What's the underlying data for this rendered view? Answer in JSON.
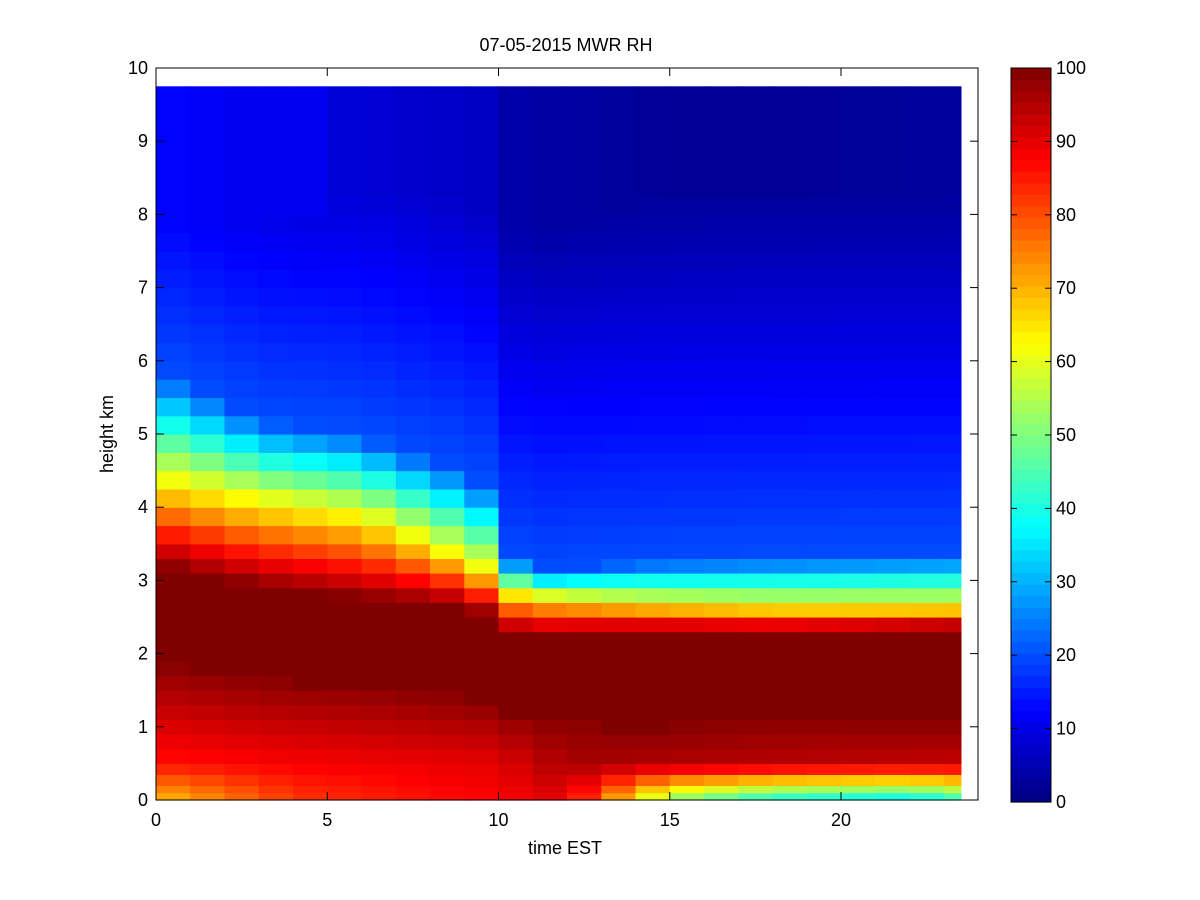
{
  "chart_data": {
    "type": "heatmap",
    "title": "07-05-2015 MWR RH",
    "xlabel": "time EST",
    "ylabel": "height km",
    "xlim": [
      0,
      24
    ],
    "ylim": [
      0,
      10
    ],
    "x_ticks": [
      0,
      5,
      10,
      15,
      20
    ],
    "y_ticks": [
      0,
      1,
      2,
      3,
      4,
      5,
      6,
      7,
      8,
      9,
      10
    ],
    "colorbar": {
      "colormap": "jet",
      "range": [
        0,
        100
      ],
      "ticks": [
        0,
        10,
        20,
        30,
        40,
        50,
        60,
        70,
        80,
        90,
        100
      ]
    },
    "x": [
      0.5,
      1.5,
      2.5,
      3.5,
      4.5,
      5.5,
      6.5,
      7.5,
      8.5,
      9.5,
      10.5,
      11.5,
      12.5,
      13.5,
      14.5,
      15.5,
      16.5,
      17.5,
      18.5,
      19.5,
      20.5,
      21.5,
      22.5,
      23.5
    ],
    "y": [
      0.0,
      0.1,
      0.2,
      0.35,
      0.5,
      0.7,
      0.9,
      1.1,
      1.3,
      1.5,
      1.7,
      1.9,
      2.1,
      2.3,
      2.5,
      2.7,
      2.9,
      3.1,
      3.3,
      3.5,
      3.75,
      4.0,
      4.25,
      4.5,
      4.75,
      5.0,
      5.25,
      5.5,
      5.75,
      6.0,
      6.25,
      6.5,
      6.75,
      7.0,
      7.25,
      7.5,
      7.75,
      8.0,
      8.25,
      8.5,
      8.75,
      9.0,
      9.25,
      9.5,
      9.75
    ],
    "rh_profile_samples": [
      {
        "time": 0.5,
        "height_km": [
          0.1,
          0.5,
          1.0,
          1.5,
          2.5,
          3.5,
          4.25,
          5.0,
          6.0,
          8.0,
          9.5
        ],
        "rh": [
          62,
          82,
          92,
          96,
          99,
          92,
          60,
          35,
          20,
          12,
          11
        ]
      },
      {
        "time": 5.5,
        "height_km": [
          0.1,
          0.5,
          1.0,
          1.5,
          2.5,
          3.5,
          4.25,
          5.0,
          6.0,
          8.0,
          9.5
        ],
        "rh": [
          75,
          85,
          88,
          93,
          99,
          65,
          38,
          18,
          10,
          10,
          9
        ]
      },
      {
        "time": 10.5,
        "height_km": [
          0.1,
          0.5,
          1.0,
          1.5,
          2.5,
          3.0,
          3.5,
          5.0,
          6.0,
          8.0,
          9.5
        ],
        "rh": [
          85,
          93,
          97,
          99,
          96,
          40,
          18,
          6,
          4,
          4,
          5
        ]
      },
      {
        "time": 15.5,
        "height_km": [
          0.1,
          0.5,
          1.0,
          1.5,
          2.5,
          3.0,
          3.5,
          5.0,
          6.0,
          8.0,
          9.5
        ],
        "rh": [
          45,
          88,
          96,
          99,
          90,
          35,
          15,
          4,
          3,
          3,
          4
        ]
      },
      {
        "time": 20.5,
        "height_km": [
          0.1,
          0.5,
          1.0,
          1.5,
          2.5,
          3.0,
          3.5,
          5.0,
          6.0,
          8.0,
          9.5
        ],
        "rh": [
          35,
          70,
          92,
          99,
          92,
          38,
          14,
          4,
          3,
          3,
          4
        ]
      }
    ]
  }
}
